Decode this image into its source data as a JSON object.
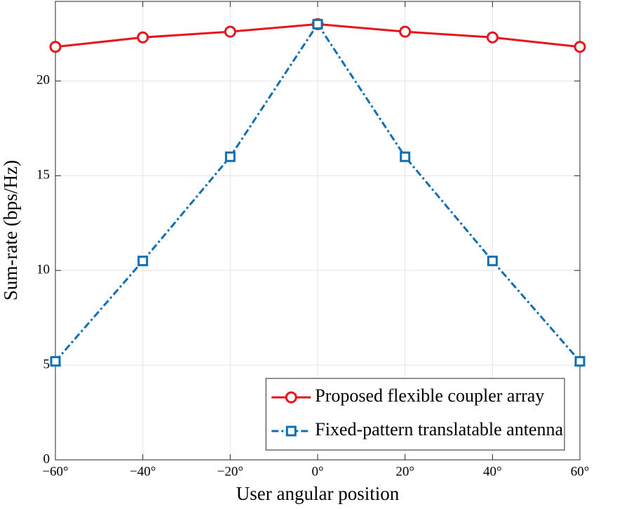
{
  "chart_data": {
    "type": "line",
    "xlabel": "User angular position",
    "ylabel": "Sum-rate (bps/Hz)",
    "x": [
      -60,
      -40,
      -20,
      0,
      20,
      40,
      60
    ],
    "series": [
      {
        "name": "Proposed flexible coupler array",
        "color": "#e8141b",
        "linestyle": "solid",
        "marker": "circle",
        "values": [
          21.8,
          22.3,
          22.6,
          23.0,
          22.6,
          22.3,
          21.8
        ]
      },
      {
        "name": "Fixed-pattern translatable antenna",
        "color": "#0f6fb5",
        "linestyle": "dashdot",
        "marker": "square",
        "values": [
          5.2,
          10.5,
          16.0,
          23.0,
          16.0,
          10.5,
          5.2
        ]
      }
    ],
    "xlim": [
      -60,
      60
    ],
    "xticks": [
      {
        "value": -60,
        "label": "−60°"
      },
      {
        "value": -40,
        "label": "−40°"
      },
      {
        "value": -20,
        "label": "−20°"
      },
      {
        "value": 0,
        "label": "0°"
      },
      {
        "value": 20,
        "label": "20°"
      },
      {
        "value": 40,
        "label": "40°"
      },
      {
        "value": 60,
        "label": "60°"
      }
    ],
    "ylim": [
      0,
      24.2
    ],
    "yticks": [
      0,
      5,
      10,
      15,
      20
    ],
    "grid": true,
    "legend": "lower right"
  }
}
